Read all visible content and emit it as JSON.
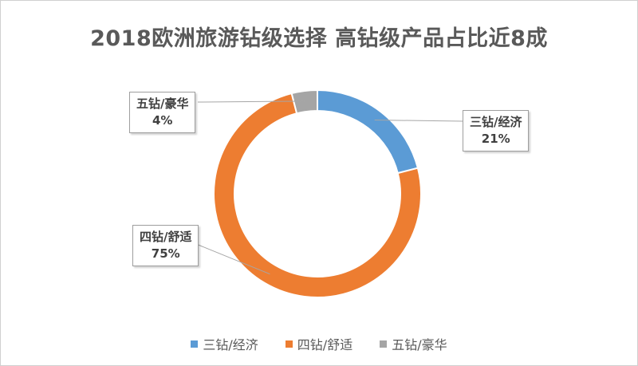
{
  "chart_data": {
    "type": "pie",
    "style": "doughnut",
    "title": "2018欧洲旅游钻级选择 高钻级产品占比近8成",
    "slices": [
      {
        "name": "三钻/经济",
        "value": 21,
        "label": "21%",
        "color": "#5b9bd5"
      },
      {
        "name": "四钻/舒适",
        "value": 75,
        "label": "75%",
        "color": "#ed7d31"
      },
      {
        "name": "五钻/豪华",
        "value": 4,
        "label": "4%",
        "color": "#a5a5a5"
      }
    ],
    "start": "top, clockwise",
    "legend_position": "bottom"
  }
}
